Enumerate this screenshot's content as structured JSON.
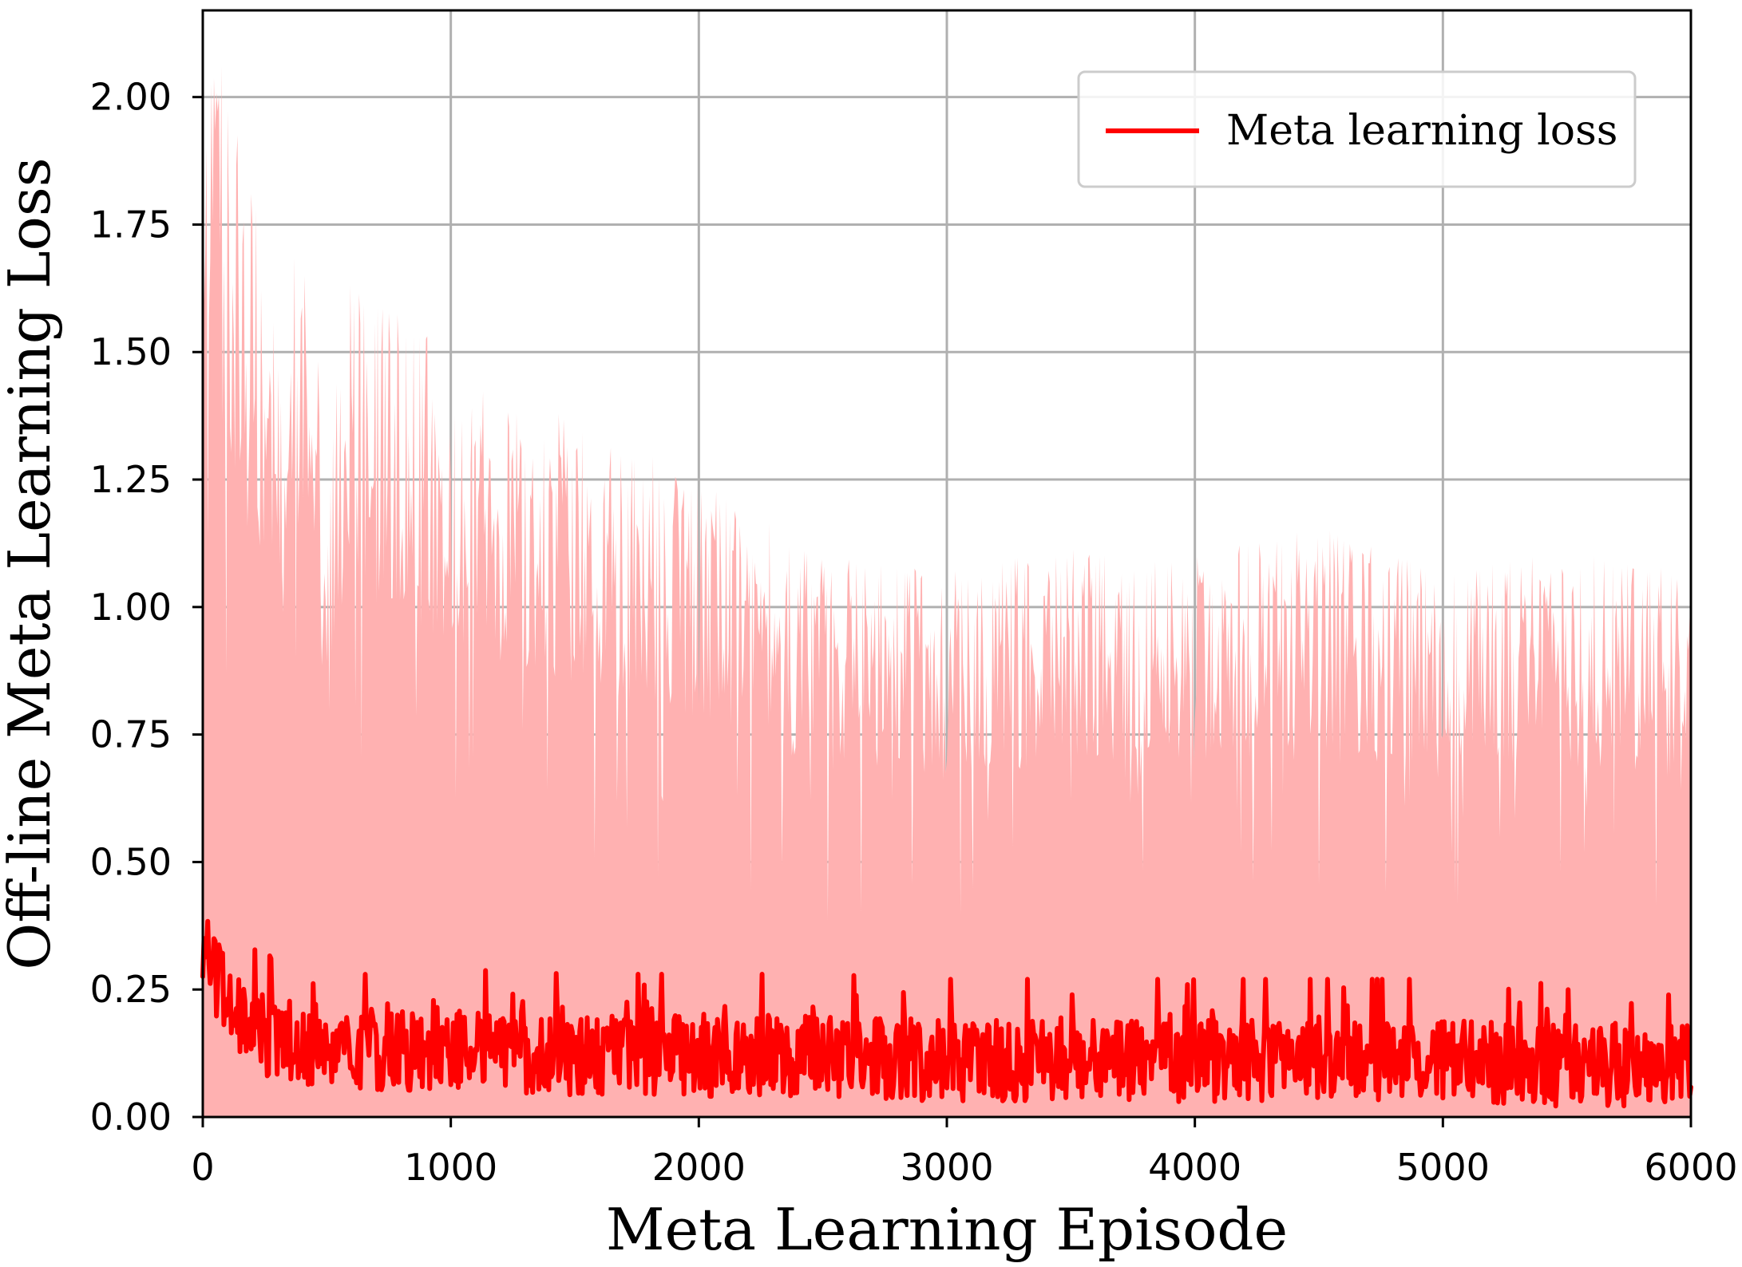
{
  "chart_data": {
    "type": "line",
    "xlabel": "Meta Learning Episode",
    "ylabel": "Off-line Meta Learning Loss",
    "xlim": [
      0,
      6000
    ],
    "ylim": [
      0,
      2.17
    ],
    "x_ticks": [
      0,
      1000,
      2000,
      3000,
      4000,
      5000,
      6000
    ],
    "x_tick_labels": [
      "0",
      "1000",
      "2000",
      "3000",
      "4000",
      "5000",
      "6000"
    ],
    "y_ticks": [
      0.0,
      0.25,
      0.5,
      0.75,
      1.0,
      1.25,
      1.5,
      1.75,
      2.0
    ],
    "y_tick_labels": [
      "0.00",
      "0.25",
      "0.50",
      "0.75",
      "1.00",
      "1.25",
      "1.50",
      "1.75",
      "2.00"
    ],
    "grid": true,
    "legend": {
      "position": "top-right",
      "entries": [
        "Meta learning loss"
      ]
    },
    "series": [
      {
        "name": "Meta learning loss",
        "color": "#ff0000",
        "mean_trend": {
          "x": [
            0,
            100,
            200,
            300,
            500,
            700,
            1000,
            1500,
            2000,
            2500,
            3000,
            3500,
            4000,
            4500,
            5000,
            5500,
            6000
          ],
          "y": [
            0.33,
            0.22,
            0.17,
            0.15,
            0.14,
            0.13,
            0.13,
            0.12,
            0.12,
            0.12,
            0.11,
            0.11,
            0.11,
            0.11,
            0.11,
            0.1,
            0.1
          ]
        },
        "band": {
          "color": "#ffb1b1",
          "lower": 0.0,
          "upper_envelope": {
            "x": [
              0,
              50,
              100,
              200,
              300,
              400,
              500,
              600,
              800,
              1000,
              1200,
              1500,
              1800,
              2000,
              2500,
              3000,
              3500,
              4000,
              4500,
              5000,
              5500,
              6000
            ],
            "y": [
              2.17,
              2.14,
              2.01,
              1.82,
              1.59,
              1.74,
              1.35,
              1.65,
              1.61,
              1.46,
              1.41,
              1.37,
              1.3,
              1.25,
              1.1,
              1.07,
              1.12,
              1.1,
              1.16,
              1.07,
              1.11,
              1.07
            ]
          }
        }
      }
    ]
  },
  "colors": {
    "background": "#ffffff",
    "grid": "#b0b0b0",
    "axis": "#000000",
    "band": "#ffb1b1",
    "line": "#ff0000",
    "legend_border": "#cccccc"
  }
}
